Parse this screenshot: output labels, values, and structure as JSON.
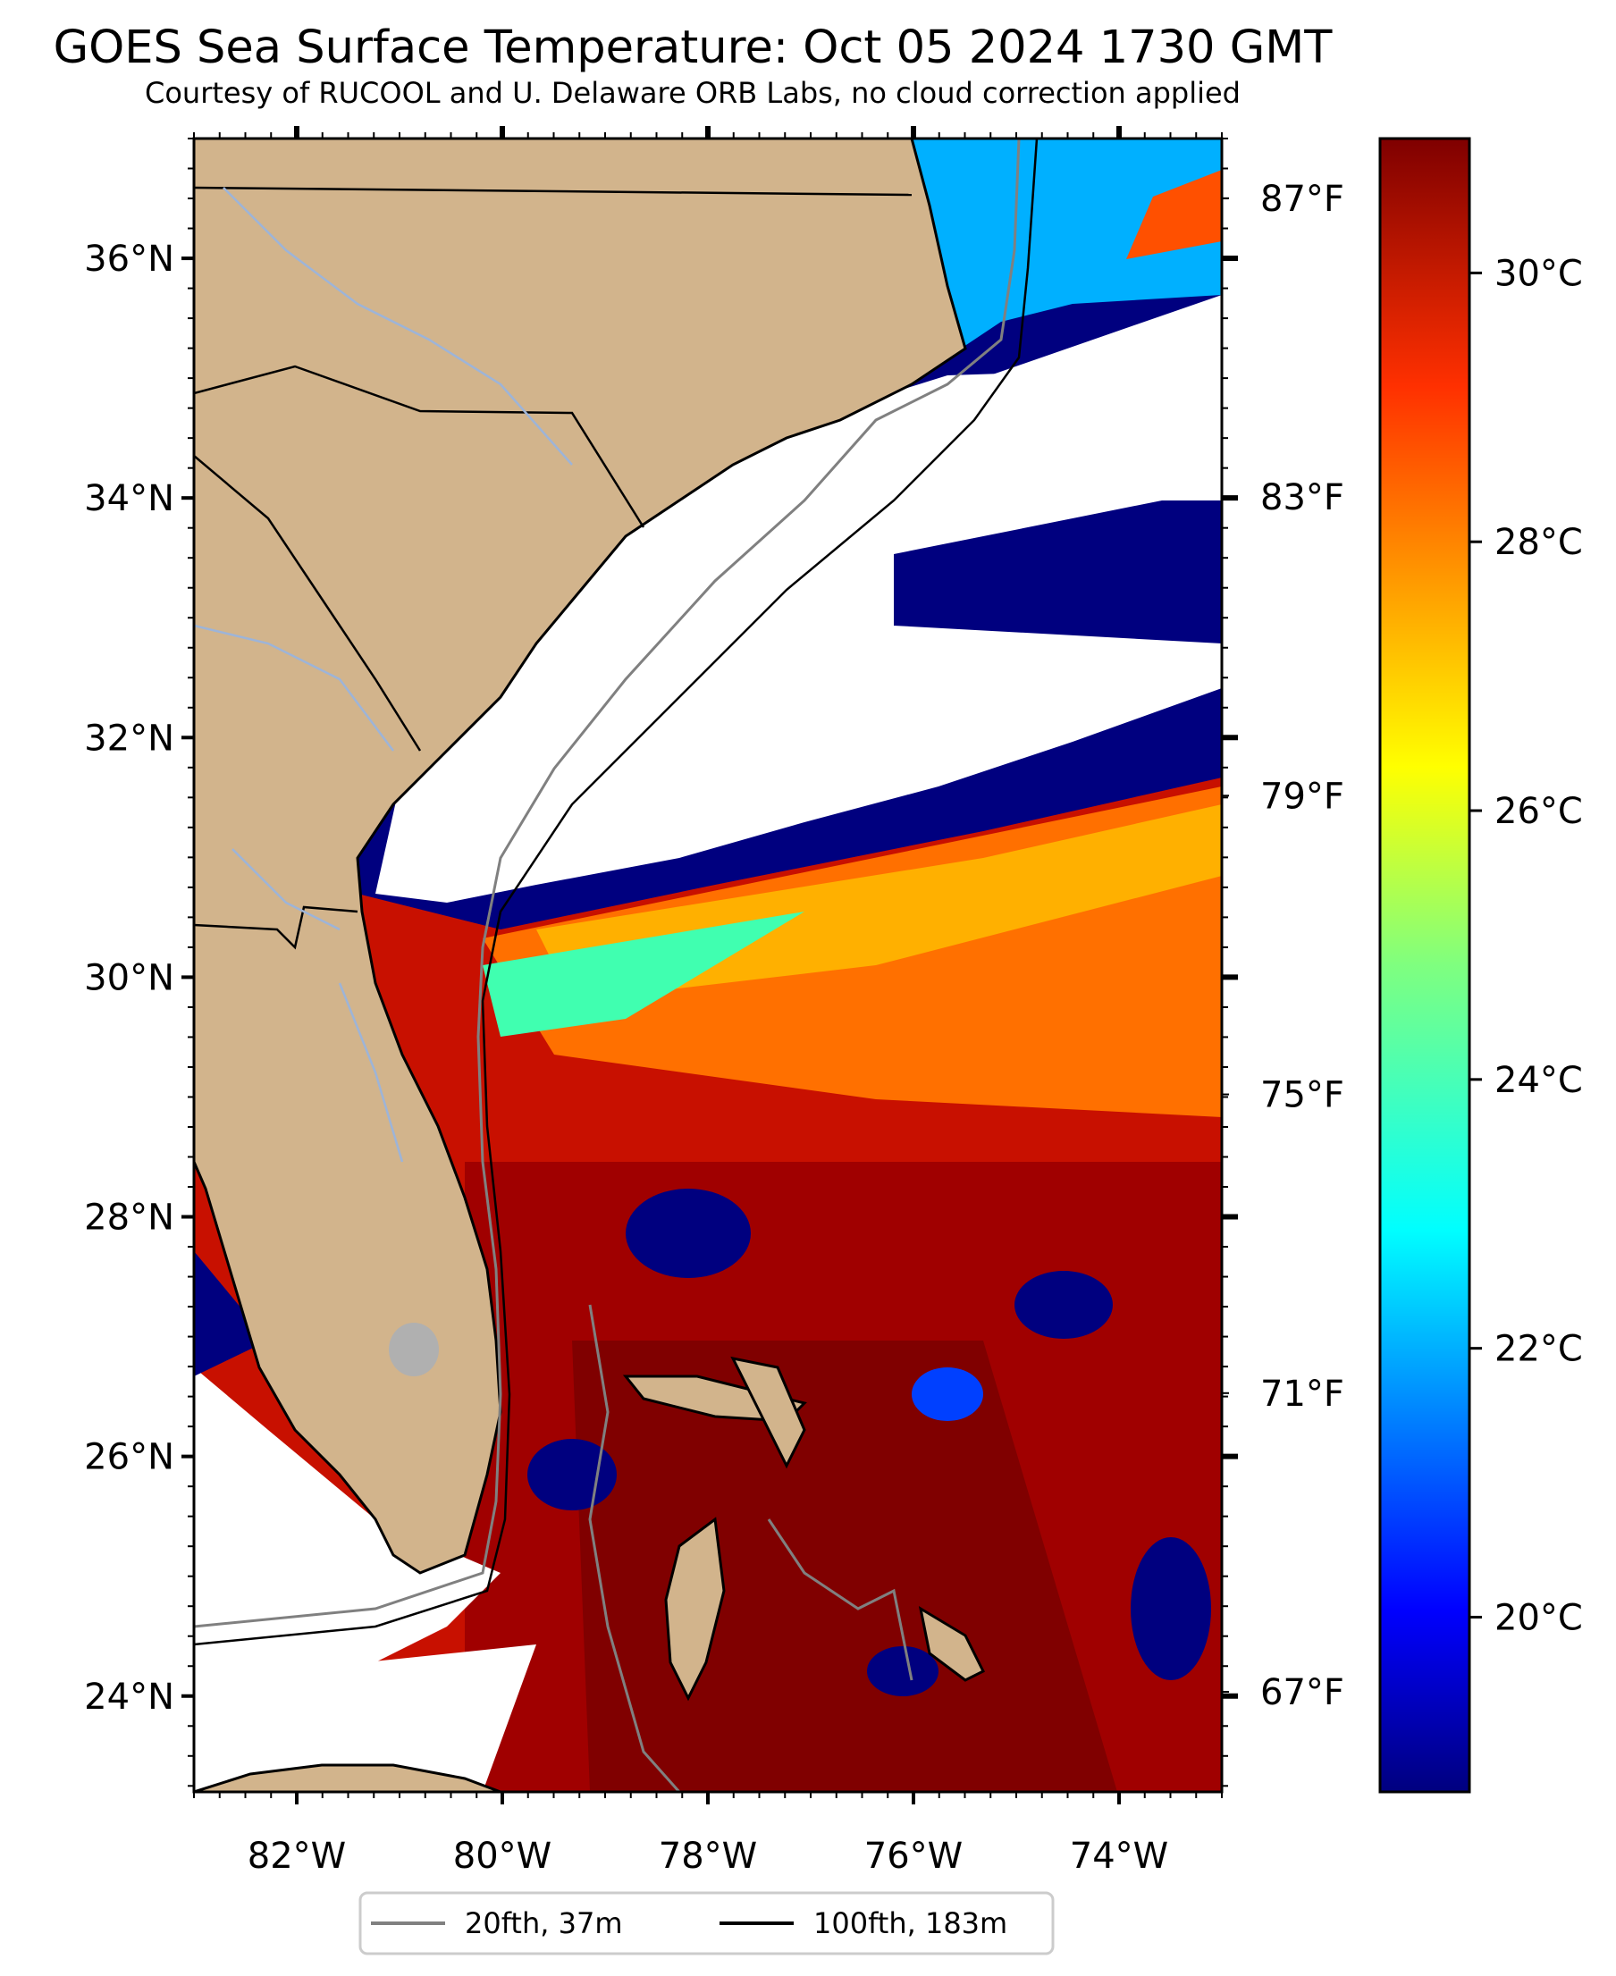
{
  "title": "GOES Sea Surface Temperature: Oct 05 2024 1730 GMT",
  "subtitle": "Courtesy of RUCOOL and U. Delaware ORB Labs, no cloud correction applied",
  "map": {
    "lon_range": [
      -83,
      -73
    ],
    "lat_range": [
      23.2,
      37
    ]
  },
  "axes": {
    "lon_ticks": [
      "82°W",
      "80°W",
      "78°W",
      "76°W",
      "74°W"
    ],
    "lat_ticks": [
      "36°N",
      "34°N",
      "32°N",
      "30°N",
      "28°N",
      "26°N",
      "24°N"
    ],
    "fahrenheit_ticks": [
      "87°F",
      "83°F",
      "79°F",
      "75°F",
      "71°F",
      "67°F"
    ]
  },
  "colorbar": {
    "celsius_ticks": [
      "30°C",
      "28°C",
      "26°C",
      "24°C",
      "22°C",
      "20°C"
    ],
    "colormap": "jet",
    "range_c": [
      18.7,
      31
    ]
  },
  "legend": [
    {
      "label": "20fth, 37m",
      "color": "#808080"
    },
    {
      "label": "100fth, 183m",
      "color": "#000000"
    }
  ],
  "colors": {
    "land": "#d2b48c",
    "cloud": "#ffffff",
    "cold": "#00007f",
    "warm": "#d01000",
    "hot": "#800000"
  }
}
